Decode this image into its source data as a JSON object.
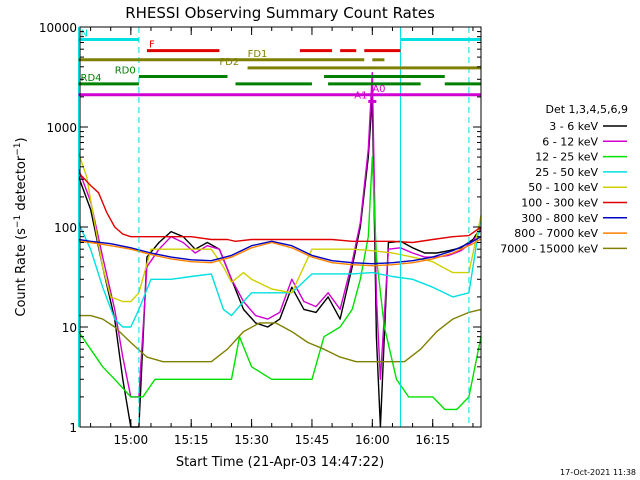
{
  "chart_data": {
    "type": "line",
    "title": "RHESSI Observing Summary Count Rates",
    "xlabel": "Start Time (21-Apr-03 14:47:22)",
    "ylabel": "Count Rate (s⁻¹ detector⁻¹)",
    "ylabel_main": "Count Rate (s",
    "ylabel_sup1": "−1",
    "ylabel_mid": " detector",
    "ylabel_sup2": "−1",
    "ylabel_end": ")",
    "y_scale": "log",
    "xlim": [
      "14:47:22",
      "16:27:00"
    ],
    "ylim": [
      1,
      10000
    ],
    "x_ticks": [
      "15:00",
      "15:15",
      "15:30",
      "15:45",
      "16:00",
      "16:15"
    ],
    "y_ticks": [
      "1",
      "10",
      "100",
      "1000",
      "10000"
    ],
    "timestamp": "17-Oct-2021 11:38",
    "legend_title": "Det 1,3,4,5,6,9",
    "legend_position": "right",
    "series": [
      {
        "name": "3 - 6 keV",
        "color": "#000000",
        "x": [
          "14:47",
          "14:50",
          "14:53",
          "14:56",
          "14:58",
          "15:00",
          "15:02",
          "15:04",
          "15:07",
          "15:10",
          "15:13",
          "15:16",
          "15:19",
          "15:22",
          "15:25",
          "15:28",
          "15:31",
          "15:34",
          "15:37",
          "15:40",
          "15:43",
          "15:46",
          "15:49",
          "15:52",
          "15:55",
          "15:57",
          "15:59",
          "16:00",
          "16:01",
          "16:02",
          "16:04",
          "16:07",
          "16:10",
          "16:13",
          "16:16",
          "16:19",
          "16:22",
          "16:25",
          "16:27"
        ],
        "y": [
          320,
          150,
          40,
          12,
          3,
          1,
          1,
          50,
          70,
          90,
          80,
          60,
          70,
          60,
          30,
          15,
          11,
          10,
          12,
          25,
          15,
          14,
          20,
          12,
          40,
          100,
          500,
          2000,
          8,
          1,
          70,
          72,
          62,
          55,
          55,
          58,
          62,
          75,
          100
        ]
      },
      {
        "name": "6 - 12 keV",
        "color": "#d000d0",
        "x": [
          "14:47",
          "14:50",
          "14:53",
          "14:56",
          "14:58",
          "15:00",
          "15:02",
          "15:04",
          "15:07",
          "15:10",
          "15:13",
          "15:16",
          "15:19",
          "15:22",
          "15:25",
          "15:28",
          "15:31",
          "15:34",
          "15:37",
          "15:40",
          "15:43",
          "15:46",
          "15:49",
          "15:52",
          "15:55",
          "15:57",
          "15:59",
          "16:00",
          "16:01",
          "16:02",
          "16:04",
          "16:07",
          "16:10",
          "16:13",
          "16:16",
          "16:19",
          "16:22",
          "16:25",
          "16:27"
        ],
        "y": [
          380,
          180,
          50,
          15,
          5,
          2,
          2,
          40,
          60,
          80,
          70,
          55,
          65,
          60,
          30,
          18,
          13,
          12,
          14,
          30,
          18,
          16,
          22,
          15,
          45,
          110,
          600,
          3500,
          20,
          3,
          60,
          62,
          55,
          50,
          50,
          52,
          58,
          72,
          95
        ]
      },
      {
        "name": "12 - 25 keV",
        "color": "#00e000",
        "x": [
          "14:47",
          "14:50",
          "14:53",
          "14:56",
          "15:00",
          "15:03",
          "15:06",
          "15:10",
          "15:15",
          "15:20",
          "15:25",
          "15:27",
          "15:30",
          "15:35",
          "15:40",
          "15:45",
          "15:48",
          "15:52",
          "15:55",
          "15:57",
          "15:59",
          "16:00",
          "16:01",
          "16:03",
          "16:06",
          "16:09",
          "16:12",
          "16:15",
          "16:18",
          "16:21",
          "16:24",
          "16:27"
        ],
        "y": [
          9,
          6,
          4,
          3,
          2,
          2,
          3,
          3,
          3,
          3,
          3,
          8,
          4,
          3,
          3,
          3,
          8,
          10,
          15,
          30,
          80,
          500,
          50,
          10,
          3,
          2,
          2,
          2,
          1.5,
          1.5,
          2,
          8
        ]
      },
      {
        "name": "25 - 50 keV",
        "color": "#00e0e0",
        "x": [
          "14:47",
          "14:50",
          "14:53",
          "14:56",
          "14:58",
          "15:00",
          "15:02",
          "15:05",
          "15:10",
          "15:15",
          "15:20",
          "15:23",
          "15:25",
          "15:28",
          "15:30",
          "15:35",
          "15:40",
          "15:45",
          "15:50",
          "15:55",
          "16:00",
          "16:05",
          "16:10",
          "16:15",
          "16:20",
          "16:24",
          "16:27"
        ],
        "y": [
          110,
          60,
          25,
          12,
          10,
          10,
          15,
          30,
          30,
          32,
          34,
          15,
          13,
          18,
          22,
          22,
          22,
          34,
          34,
          34,
          35,
          32,
          30,
          25,
          20,
          22,
          130
        ]
      },
      {
        "name": "50 - 100 keV",
        "color": "#d0d000",
        "x": [
          "14:47",
          "14:49",
          "14:51",
          "14:53",
          "14:55",
          "14:58",
          "15:00",
          "15:02",
          "15:05",
          "15:10",
          "15:15",
          "15:20",
          "15:23",
          "15:25",
          "15:28",
          "15:30",
          "15:35",
          "15:40",
          "15:45",
          "15:50",
          "15:55",
          "16:00",
          "16:05",
          "16:10",
          "16:15",
          "16:20",
          "16:24",
          "16:27"
        ],
        "y": [
          550,
          320,
          110,
          40,
          20,
          18,
          18,
          22,
          60,
          60,
          60,
          60,
          40,
          28,
          35,
          30,
          24,
          22,
          60,
          60,
          60,
          58,
          55,
          50,
          45,
          35,
          35,
          130
        ]
      },
      {
        "name": "100 - 300 keV",
        "color": "#e00000",
        "x": [
          "14:47",
          "14:50",
          "14:52",
          "14:54",
          "14:56",
          "14:58",
          "15:00",
          "15:02",
          "15:05",
          "15:10",
          "15:15",
          "15:20",
          "15:24",
          "15:26",
          "15:30",
          "15:35",
          "15:40",
          "15:45",
          "15:50",
          "15:55",
          "16:00",
          "16:05",
          "16:10",
          "16:15",
          "16:20",
          "16:24",
          "16:27"
        ],
        "y": [
          350,
          260,
          220,
          140,
          100,
          85,
          80,
          80,
          80,
          80,
          80,
          75,
          75,
          72,
          75,
          75,
          75,
          75,
          75,
          72,
          72,
          72,
          70,
          75,
          80,
          82,
          100
        ]
      },
      {
        "name": "300 - 800 keV",
        "color": "#0000c0",
        "x": [
          "14:47",
          "14:50",
          "14:55",
          "15:00",
          "15:05",
          "15:10",
          "15:15",
          "15:20",
          "15:25",
          "15:30",
          "15:35",
          "15:40",
          "15:45",
          "15:50",
          "15:55",
          "16:00",
          "16:05",
          "16:10",
          "16:15",
          "16:20",
          "16:25",
          "16:27"
        ],
        "y": [
          75,
          72,
          68,
          62,
          55,
          50,
          47,
          46,
          52,
          65,
          72,
          65,
          52,
          46,
          44,
          43,
          44,
          46,
          50,
          58,
          72,
          80
        ]
      },
      {
        "name": "800 - 7000 keV",
        "color": "#ff8000",
        "x": [
          "14:47",
          "14:50",
          "14:55",
          "15:00",
          "15:05",
          "15:10",
          "15:15",
          "15:20",
          "15:25",
          "15:30",
          "15:35",
          "15:40",
          "15:45",
          "15:50",
          "15:55",
          "16:00",
          "16:05",
          "16:10",
          "16:15",
          "16:20",
          "16:25",
          "16:27"
        ],
        "y": [
          72,
          70,
          65,
          60,
          53,
          48,
          45,
          44,
          50,
          62,
          70,
          62,
          50,
          44,
          42,
          41,
          42,
          44,
          48,
          55,
          68,
          76
        ]
      },
      {
        "name": "7000 - 15000 keV",
        "color": "#808000",
        "x": [
          "14:47",
          "14:50",
          "14:53",
          "14:56",
          "15:00",
          "15:04",
          "15:08",
          "15:12",
          "15:16",
          "15:20",
          "15:24",
          "15:28",
          "15:32",
          "15:36",
          "15:40",
          "15:44",
          "15:48",
          "15:52",
          "15:56",
          "16:00",
          "16:04",
          "16:08",
          "16:12",
          "16:16",
          "16:20",
          "16:24",
          "16:27"
        ],
        "y": [
          13,
          13,
          12,
          10,
          7,
          5,
          4.5,
          4.5,
          4.5,
          4.5,
          6,
          9,
          11,
          11,
          9,
          7,
          6,
          5,
          4.5,
          4.5,
          4.5,
          4.5,
          6,
          9,
          12,
          14,
          15
        ]
      }
    ],
    "state_bars": [
      {
        "label": "N",
        "color": "#00e0e0",
        "y_level": 7500,
        "segments": [
          [
            "14:47",
            "15:02"
          ],
          [
            "16:07",
            "16:27"
          ]
        ]
      },
      {
        "label": "F",
        "color": "#e00000",
        "y_level": 5800,
        "segments": [
          [
            "15:04",
            "15:22"
          ],
          [
            "15:42",
            "15:50"
          ],
          [
            "15:52",
            "15:56"
          ],
          [
            "15:58",
            "16:07"
          ]
        ]
      },
      {
        "label": "FD1",
        "color": "#808000",
        "y_level": 4700,
        "segments": [
          [
            "14:47",
            "15:58"
          ],
          [
            "16:00",
            "16:03"
          ]
        ]
      },
      {
        "label": "FD2",
        "color": "#808000",
        "y_level": 3900,
        "segments": [
          [
            "15:29",
            "16:27"
          ]
        ]
      },
      {
        "label": "RD0",
        "color": "#008000",
        "y_level": 3200,
        "segments": [
          [
            "15:02",
            "15:24"
          ],
          [
            "15:48",
            "16:18"
          ]
        ]
      },
      {
        "label": "RD4",
        "color": "#008000",
        "y_level": 2700,
        "segments": [
          [
            "14:47",
            "15:02"
          ],
          [
            "15:26",
            "15:45"
          ],
          [
            "15:49",
            "16:12"
          ],
          [
            "16:18",
            "16:27"
          ]
        ]
      },
      {
        "label": "A0",
        "color": "#d000d0",
        "y_level": 2100,
        "segments": [
          [
            "14:47",
            "16:27"
          ]
        ]
      },
      {
        "label": "A1",
        "color": "#d000d0",
        "y_level": 1800,
        "segments": [
          [
            "15:59",
            "16:01"
          ]
        ]
      }
    ],
    "vlines": [
      {
        "x": "14:47",
        "color": "#00e0e0",
        "style": "solid"
      },
      {
        "x": "15:02",
        "color": "#00e0e0",
        "style": "dashed"
      },
      {
        "x": "16:07",
        "color": "#00e0e0",
        "style": "solid"
      },
      {
        "x": "16:24",
        "color": "#00e0e0",
        "style": "dashed"
      }
    ]
  }
}
